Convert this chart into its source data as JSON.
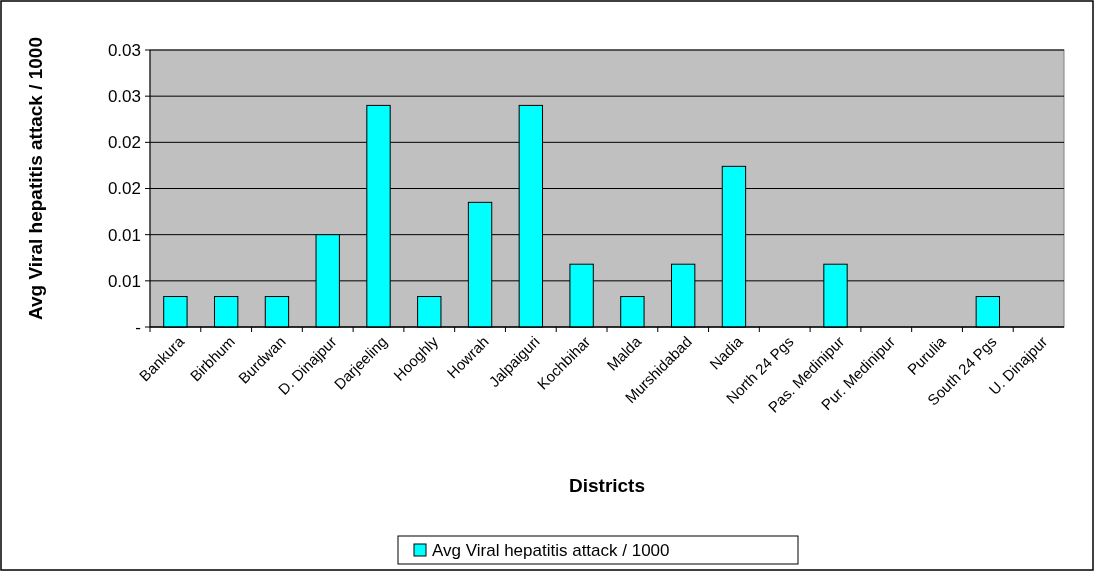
{
  "chart_data": {
    "type": "bar",
    "xlabel": "Districts",
    "ylabel": "Avg Viral hepatitis attack / 1000",
    "categories": [
      "Bankura",
      "Birbhum",
      "Burdwan",
      "D. Dinajpur",
      "Darjeeling",
      "Hooghly",
      "Howrah",
      "Jalpaiguri",
      "Kochbihar",
      "Malda",
      "Murshidabad",
      "Nadia",
      "North 24 Pgs",
      "Pas. Medinipur",
      "Pur. Medinipur",
      "Purulia",
      "South 24 Pgs",
      "U. Dinajpur"
    ],
    "series": [
      {
        "name": "Avg Viral hepatitis attack / 1000",
        "color": "#00ffff",
        "values": [
          0.0033,
          0.0033,
          0.0033,
          0.01,
          0.024,
          0.0033,
          0.0135,
          0.024,
          0.0068,
          0.0033,
          0.0068,
          0.0174,
          0,
          0.0068,
          0,
          0,
          0.0033,
          0
        ]
      }
    ],
    "ylim": [
      0,
      0.03
    ],
    "yticks": [
      {
        "value": 0,
        "label": "-"
      },
      {
        "value": 0.005,
        "label": "0.01"
      },
      {
        "value": 0.01,
        "label": "0.01"
      },
      {
        "value": 0.015,
        "label": "0.02"
      },
      {
        "value": 0.02,
        "label": "0.02"
      },
      {
        "value": 0.025,
        "label": "0.03"
      },
      {
        "value": 0.03,
        "label": "0.03"
      }
    ],
    "grid": "y",
    "legend": "bottom"
  }
}
